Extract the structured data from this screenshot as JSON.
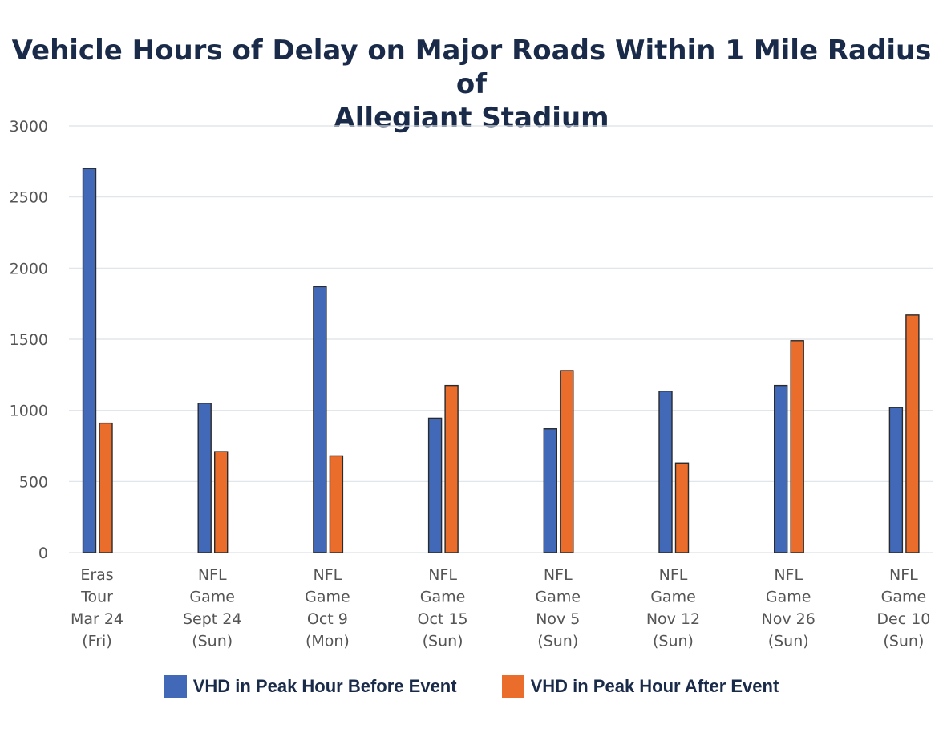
{
  "chart_data": {
    "type": "bar",
    "title_lines": [
      "Vehicle Hours of Delay on Major Roads Within 1 Mile Radius of",
      "Allegiant Stadium"
    ],
    "xlabel": "",
    "ylabel": "",
    "ylim": [
      0,
      3000
    ],
    "yticks": [
      0,
      500,
      1000,
      1500,
      2000,
      2500,
      3000
    ],
    "grid": true,
    "legend_position": "bottom",
    "categories": [
      [
        "Eras",
        "Tour",
        "Mar 24",
        "(Fri)"
      ],
      [
        "NFL",
        "Game",
        "Sept 24",
        "(Sun)"
      ],
      [
        "NFL",
        "Game",
        "Oct 9",
        "(Mon)"
      ],
      [
        "NFL",
        "Game",
        "Oct 15",
        "(Sun)"
      ],
      [
        "NFL",
        "Game",
        "Nov 5",
        "(Sun)"
      ],
      [
        "NFL",
        "Game",
        "Nov 12",
        "(Sun)"
      ],
      [
        "NFL",
        "Game",
        "Nov 26",
        "(Sun)"
      ],
      [
        "NFL",
        "Game",
        "Dec 10",
        "(Sun)"
      ]
    ],
    "series": [
      {
        "name": "VHD in Peak Hour Before Event",
        "color": "#4169b8",
        "values": [
          2700,
          1050,
          1870,
          945,
          870,
          1135,
          1175,
          1020
        ]
      },
      {
        "name": "VHD in Peak Hour After Event",
        "color": "#ea6d2c",
        "values": [
          910,
          710,
          680,
          1175,
          1280,
          630,
          1490,
          1670
        ]
      }
    ]
  },
  "colors": {
    "title": "#1a2b4a",
    "grid": "#dde2e8",
    "tick": "#555555",
    "bar_outline": "#2a2a2a"
  }
}
